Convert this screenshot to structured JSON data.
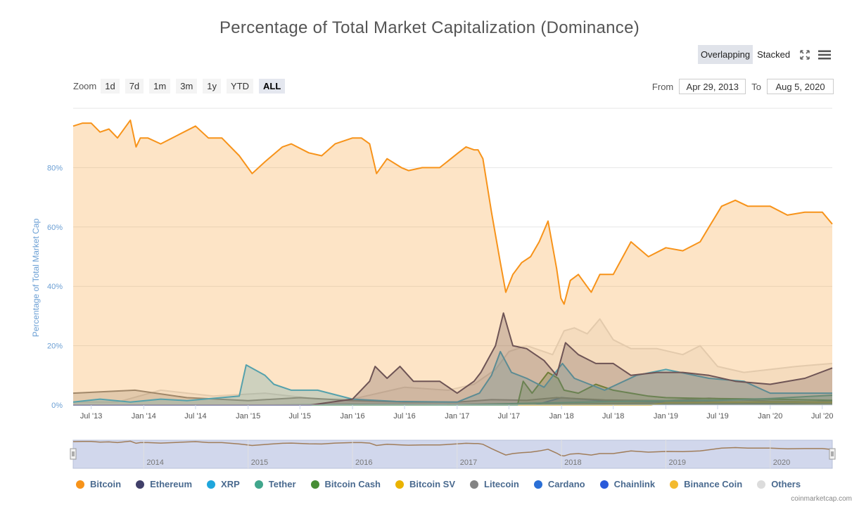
{
  "title": "Percentage of Total Market Capitalization (Dominance)",
  "view_modes": [
    "Overlapping",
    "Stacked"
  ],
  "active_view": "Overlapping",
  "zoom": {
    "label": "Zoom",
    "options": [
      "1d",
      "7d",
      "1m",
      "3m",
      "1y",
      "YTD",
      "ALL"
    ],
    "active": "ALL"
  },
  "range": {
    "from_label": "From",
    "from_value": "Apr 29, 2013",
    "to_label": "To",
    "to_value": "Aug 5, 2020"
  },
  "credit": "coinmarketcap.com",
  "chart_data": {
    "type": "area",
    "ylabel": "Percentage of Total Market Cap",
    "ylim": [
      0,
      100
    ],
    "yticks": [
      0,
      20,
      40,
      60,
      80
    ],
    "ytick_labels": [
      "0%",
      "20%",
      "40%",
      "60%",
      "80%"
    ],
    "xlim": [
      "2013-04-29",
      "2020-08-05"
    ],
    "xticks": [
      "2013-07-01",
      "2014-01-01",
      "2014-07-01",
      "2015-01-01",
      "2015-07-01",
      "2016-01-01",
      "2016-07-01",
      "2017-01-01",
      "2017-07-01",
      "2018-01-01",
      "2018-07-01",
      "2019-01-01",
      "2019-07-01",
      "2020-01-01",
      "2020-07-01"
    ],
    "xtick_labels": [
      "Jul '13",
      "Jan '14",
      "Jul '14",
      "Jan '15",
      "Jul '15",
      "Jan '16",
      "Jul '16",
      "Jan '17",
      "Jul '17",
      "Jan '18",
      "Jul '18",
      "Jan '19",
      "Jul '19",
      "Jan '20",
      "Jul '20"
    ],
    "navigator_labels": [
      "2014",
      "2015",
      "2016",
      "2017",
      "2018",
      "2019",
      "2020"
    ],
    "navigator_ticks": [
      "2014-01-01",
      "2015-01-01",
      "2016-01-01",
      "2017-01-01",
      "2018-01-01",
      "2019-01-01",
      "2020-01-01"
    ],
    "grid": true,
    "legend_position": "bottom",
    "series": [
      {
        "name": "Others",
        "color": "#dcdcdc",
        "x": [
          "2013-04-29",
          "2013-10-01",
          "2014-03-01",
          "2014-09-01",
          "2015-03-01",
          "2015-09-01",
          "2016-01-01",
          "2016-04-01",
          "2016-07-01",
          "2016-12-01",
          "2017-03-01",
          "2017-05-15",
          "2017-07-01",
          "2017-09-01",
          "2017-12-01",
          "2018-01-10",
          "2018-02-15",
          "2018-04-01",
          "2018-05-15",
          "2018-07-01",
          "2018-09-01",
          "2018-12-01",
          "2019-03-01",
          "2019-05-01",
          "2019-07-01",
          "2019-10-01",
          "2020-01-01",
          "2020-04-01",
          "2020-08-05"
        ],
        "y": [
          1,
          1,
          5,
          3,
          4,
          2,
          2,
          4,
          6,
          5,
          7,
          12,
          18,
          20,
          17,
          25,
          26,
          24,
          29,
          22,
          19,
          19,
          17,
          20,
          13,
          11,
          12,
          13,
          14
        ]
      },
      {
        "name": "Binance Coin",
        "color": "#f3ba2f",
        "x": [
          "2013-04-29",
          "2017-07-01",
          "2018-01-01",
          "2018-06-01",
          "2019-01-01",
          "2019-06-01",
          "2020-01-01",
          "2020-08-05"
        ],
        "y": [
          0,
          0,
          0.2,
          0.5,
          0.9,
          1.1,
          0.9,
          0.8
        ]
      },
      {
        "name": "Chainlink",
        "color": "#2a5ada",
        "x": [
          "2013-04-29",
          "2017-09-01",
          "2018-06-01",
          "2019-06-01",
          "2019-10-01",
          "2020-03-01",
          "2020-08-05"
        ],
        "y": [
          0,
          0,
          0.1,
          0.3,
          0.4,
          0.5,
          1.4
        ]
      },
      {
        "name": "Cardano",
        "color": "#2a6fd6",
        "x": [
          "2013-04-29",
          "2017-10-01",
          "2018-01-01",
          "2018-06-01",
          "2019-01-01",
          "2019-06-01",
          "2020-01-01",
          "2020-08-05"
        ],
        "y": [
          0,
          0,
          2.5,
          1.4,
          1,
          1.1,
          0.8,
          1.2
        ]
      },
      {
        "name": "Litecoin",
        "color": "#838383",
        "x": [
          "2013-04-29",
          "2013-12-01",
          "2014-06-01",
          "2015-01-01",
          "2015-07-01",
          "2016-01-01",
          "2016-07-01",
          "2017-01-01",
          "2017-05-01",
          "2017-09-01",
          "2017-12-15",
          "2018-06-01",
          "2019-01-01",
          "2019-06-01",
          "2020-01-01",
          "2020-08-05"
        ],
        "y": [
          4,
          5,
          2.5,
          1.5,
          2.5,
          1.5,
          1,
          1,
          1.8,
          1.6,
          2.5,
          1.7,
          1.5,
          2.3,
          1.3,
          1
        ]
      },
      {
        "name": "Bitcoin SV",
        "color": "#eab300",
        "x": [
          "2013-04-29",
          "2018-11-10",
          "2019-01-01",
          "2019-06-01",
          "2020-01-01",
          "2020-08-05"
        ],
        "y": [
          0,
          0,
          0.8,
          0.9,
          1,
          1
        ]
      },
      {
        "name": "Bitcoin Cash",
        "color": "#478d35",
        "x": [
          "2013-04-29",
          "2017-07-31",
          "2017-08-20",
          "2017-09-20",
          "2017-11-15",
          "2017-12-20",
          "2018-01-10",
          "2018-03-01",
          "2018-05-01",
          "2018-07-01",
          "2018-11-01",
          "2019-01-01",
          "2019-06-01",
          "2020-01-01",
          "2020-08-05"
        ],
        "y": [
          0,
          0,
          8,
          4,
          11,
          9,
          5,
          4,
          7,
          5,
          3,
          2.5,
          2.2,
          2,
          1.6
        ]
      },
      {
        "name": "Tether",
        "color": "#40a68c",
        "x": [
          "2013-04-29",
          "2015-03-01",
          "2016-01-01",
          "2017-01-01",
          "2018-01-01",
          "2018-07-01",
          "2019-01-01",
          "2019-07-01",
          "2020-01-01",
          "2020-08-05"
        ],
        "y": [
          0,
          0,
          0.2,
          0.1,
          0.8,
          1.2,
          1.5,
          1.6,
          2.2,
          3.3
        ]
      },
      {
        "name": "XRP",
        "color": "#1fa6dc",
        "x": [
          "2013-04-29",
          "2013-08-01",
          "2013-11-15",
          "2014-03-01",
          "2014-06-01",
          "2014-12-01",
          "2014-12-25",
          "2015-03-01",
          "2015-04-01",
          "2015-06-01",
          "2015-09-01",
          "2016-01-01",
          "2016-06-01",
          "2017-01-01",
          "2017-03-20",
          "2017-05-01",
          "2017-06-01",
          "2017-07-10",
          "2017-09-01",
          "2017-11-01",
          "2018-01-04",
          "2018-02-15",
          "2018-06-01",
          "2018-09-20",
          "2019-01-01",
          "2019-06-01",
          "2019-10-01",
          "2020-01-01",
          "2020-08-05"
        ],
        "y": [
          1,
          2,
          1,
          2,
          1.5,
          3,
          13.5,
          10,
          7,
          5,
          5,
          2,
          1.2,
          1,
          4,
          10,
          18,
          11,
          9,
          6,
          14,
          9,
          5,
          10,
          12,
          9,
          8,
          4,
          4
        ]
      },
      {
        "name": "Ethereum",
        "color": "#403f69",
        "x": [
          "2013-04-29",
          "2015-08-07",
          "2016-01-01",
          "2016-03-01",
          "2016-03-20",
          "2016-05-01",
          "2016-06-15",
          "2016-08-01",
          "2016-11-01",
          "2017-01-01",
          "2017-03-01",
          "2017-03-25",
          "2017-05-15",
          "2017-06-12",
          "2017-07-15",
          "2017-09-01",
          "2017-11-01",
          "2017-12-15",
          "2018-01-15",
          "2018-03-01",
          "2018-05-01",
          "2018-07-01",
          "2018-09-01",
          "2018-12-01",
          "2019-03-01",
          "2019-06-01",
          "2019-09-01",
          "2020-01-01",
          "2020-05-01",
          "2020-08-05"
        ],
        "y": [
          0,
          0,
          2,
          8,
          13,
          9,
          13,
          8,
          8,
          4,
          8,
          11,
          20,
          31,
          20,
          19,
          15,
          10,
          21,
          17,
          14,
          14,
          10,
          11,
          11,
          10,
          8,
          7,
          9,
          12.5
        ]
      },
      {
        "name": "Bitcoin",
        "color": "#f7931a",
        "x": [
          "2013-04-29",
          "2013-06-01",
          "2013-07-01",
          "2013-08-01",
          "2013-09-01",
          "2013-10-01",
          "2013-11-15",
          "2013-12-05",
          "2013-12-20",
          "2014-01-15",
          "2014-03-01",
          "2014-05-01",
          "2014-07-01",
          "2014-08-15",
          "2014-10-01",
          "2014-12-01",
          "2015-01-15",
          "2015-03-01",
          "2015-05-01",
          "2015-06-01",
          "2015-08-01",
          "2015-09-15",
          "2015-11-01",
          "2016-01-01",
          "2016-02-01",
          "2016-03-01",
          "2016-03-25",
          "2016-05-01",
          "2016-06-20",
          "2016-07-15",
          "2016-09-01",
          "2016-11-01",
          "2017-01-05",
          "2017-02-01",
          "2017-03-01",
          "2017-03-15",
          "2017-04-01",
          "2017-05-01",
          "2017-06-01",
          "2017-06-20",
          "2017-07-15",
          "2017-08-15",
          "2017-09-15",
          "2017-10-15",
          "2017-11-15",
          "2017-12-15",
          "2017-12-30",
          "2018-01-10",
          "2018-02-01",
          "2018-03-01",
          "2018-04-15",
          "2018-05-15",
          "2018-07-01",
          "2018-09-01",
          "2018-11-01",
          "2019-01-01",
          "2019-03-01",
          "2019-05-01",
          "2019-06-01",
          "2019-07-15",
          "2019-09-01",
          "2019-10-15",
          "2020-01-01",
          "2020-03-01",
          "2020-05-01",
          "2020-07-01",
          "2020-08-05"
        ],
        "y": [
          94,
          95,
          95,
          92,
          93,
          90,
          96,
          87,
          90,
          90,
          88,
          91,
          94,
          90,
          90,
          84,
          78,
          82,
          87,
          88,
          85,
          84,
          88,
          90,
          90,
          88,
          78,
          83,
          80,
          79,
          80,
          80,
          85,
          87,
          86,
          86,
          83,
          65,
          48,
          38,
          44,
          48,
          50,
          55,
          62,
          46,
          36,
          34,
          42,
          44,
          38,
          44,
          44,
          55,
          50,
          53,
          52,
          55,
          60,
          67,
          69,
          67,
          67,
          64,
          65,
          65,
          61
        ]
      }
    ]
  }
}
